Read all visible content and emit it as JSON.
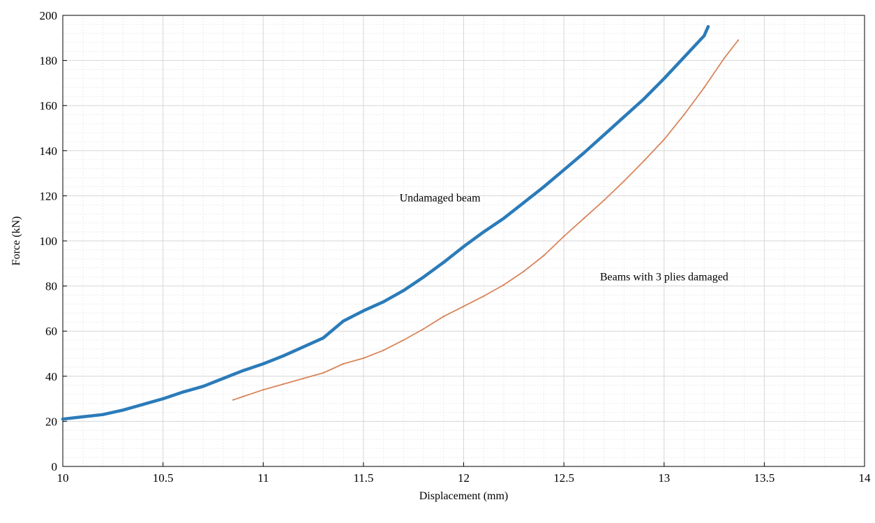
{
  "chart_data": {
    "type": "line",
    "title": "",
    "xlabel": "Displacement (mm)",
    "ylabel": "Force (kN)",
    "xlim": [
      10,
      14
    ],
    "ylim": [
      0,
      200
    ],
    "xticks": [
      "10",
      "10.5",
      "11",
      "11.5",
      "12",
      "12.5",
      "13",
      "13.5",
      "14"
    ],
    "yticks": [
      "0",
      "20",
      "40",
      "60",
      "80",
      "100",
      "120",
      "140",
      "160",
      "180",
      "200"
    ],
    "grid": true,
    "minor_grid": true,
    "series": [
      {
        "color": "#2b7bb9",
        "x": [
          10.0,
          10.1,
          10.2,
          10.3,
          10.4,
          10.5,
          10.6,
          10.7,
          10.8,
          10.9,
          11.0,
          11.1,
          11.2,
          11.3,
          11.4,
          11.5,
          11.6,
          11.7,
          11.8,
          11.9,
          12.0,
          12.1,
          12.2,
          12.3,
          12.4,
          12.5,
          12.6,
          12.7,
          12.8,
          12.9,
          13.0,
          13.1,
          13.2,
          13.22
        ],
        "y": [
          21,
          22,
          23,
          25,
          27.5,
          30,
          33,
          35.5,
          39,
          42.5,
          45.5,
          49,
          53,
          57,
          64.5,
          69,
          73,
          78,
          84,
          90.5,
          97.5,
          104,
          110,
          117,
          124,
          131.5,
          139,
          147,
          155,
          163,
          172,
          181.5,
          191,
          195
        ]
      },
      {
        "color": "#d9855a",
        "x": [
          10.85,
          10.9,
          11.0,
          11.1,
          11.2,
          11.3,
          11.4,
          11.5,
          11.6,
          11.7,
          11.8,
          11.9,
          12.0,
          12.1,
          12.2,
          12.3,
          12.4,
          12.5,
          12.6,
          12.7,
          12.8,
          12.9,
          13.0,
          13.1,
          13.2,
          13.3,
          13.37
        ],
        "y": [
          29.5,
          31,
          34,
          36.5,
          39,
          41.5,
          45.5,
          48,
          51.5,
          56,
          61,
          66.5,
          71,
          75.5,
          80.5,
          86.5,
          93.5,
          102,
          110,
          118,
          126.5,
          135.5,
          145,
          156,
          168,
          181,
          189
        ]
      }
    ],
    "annotations": [
      {
        "text": "Undamaged beam",
        "x": 11.68,
        "y": 117.5
      },
      {
        "text": "Beams with 3 plies damaged",
        "x": 12.68,
        "y": 82.5
      }
    ]
  }
}
